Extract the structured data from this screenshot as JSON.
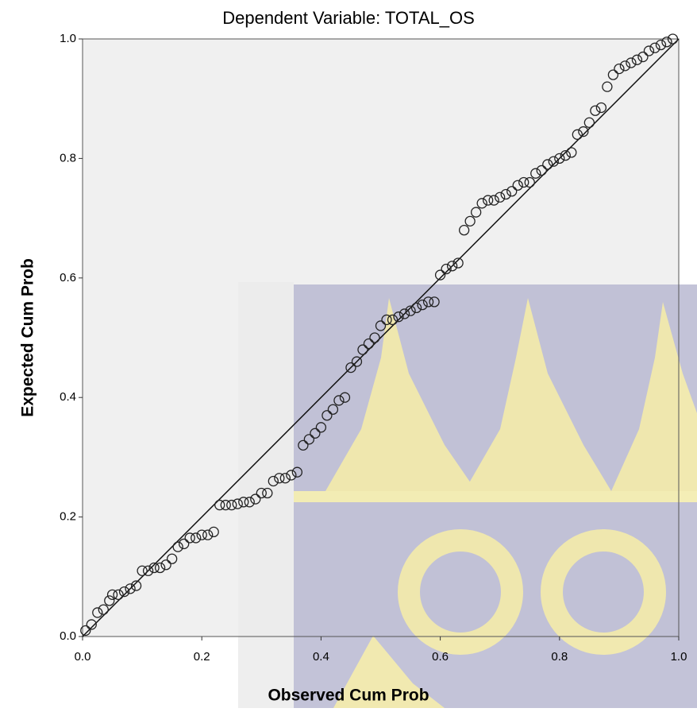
{
  "chart_data": {
    "type": "scatter",
    "title": "Dependent Variable: TOTAL_OS",
    "x_label": "Observed Cum Prob",
    "y_label": "Expected Cum Prob",
    "xlim": [
      0,
      1
    ],
    "ylim": [
      0,
      1
    ],
    "xticks": [
      {
        "value": 0,
        "label": "0.0"
      },
      0.2,
      0.4,
      0.6,
      0.8,
      {
        "value": 1,
        "label": "1.0"
      }
    ],
    "yticks": [
      {
        "value": 0,
        "label": "0.0"
      },
      0.2,
      0.4,
      0.6,
      0.8,
      {
        "value": 1,
        "label": "1.0"
      }
    ],
    "color": "#222222",
    "x": [
      0.005,
      0.015,
      0.025,
      0.035,
      0.045,
      0.05,
      0.06,
      0.07,
      0.08,
      0.09,
      0.1,
      0.11,
      0.12,
      0.13,
      0.14,
      0.15,
      0.16,
      0.17,
      0.18,
      0.19,
      0.2,
      0.21,
      0.22,
      0.23,
      0.24,
      0.25,
      0.26,
      0.27,
      0.28,
      0.29,
      0.3,
      0.31,
      0.32,
      0.33,
      0.34,
      0.35,
      0.36,
      0.37,
      0.38,
      0.39,
      0.4,
      0.41,
      0.42,
      0.43,
      0.44,
      0.45,
      0.46,
      0.47,
      0.48,
      0.49,
      0.5,
      0.51,
      0.52,
      0.53,
      0.54,
      0.55,
      0.56,
      0.57,
      0.58,
      0.59,
      0.6,
      0.61,
      0.62,
      0.63,
      0.64,
      0.65,
      0.66,
      0.67,
      0.68,
      0.69,
      0.7,
      0.71,
      0.72,
      0.73,
      0.74,
      0.75,
      0.76,
      0.77,
      0.78,
      0.79,
      0.8,
      0.81,
      0.82,
      0.83,
      0.84,
      0.85,
      0.86,
      0.87,
      0.88,
      0.89,
      0.9,
      0.91,
      0.92,
      0.93,
      0.94,
      0.95,
      0.96,
      0.97,
      0.98,
      0.99
    ],
    "values": [
      0.01,
      0.02,
      0.04,
      0.045,
      0.06,
      0.07,
      0.07,
      0.075,
      0.08,
      0.085,
      0.11,
      0.11,
      0.115,
      0.115,
      0.12,
      0.13,
      0.15,
      0.155,
      0.165,
      0.165,
      0.17,
      0.17,
      0.175,
      0.22,
      0.22,
      0.22,
      0.222,
      0.225,
      0.225,
      0.23,
      0.24,
      0.24,
      0.26,
      0.265,
      0.265,
      0.27,
      0.275,
      0.32,
      0.33,
      0.34,
      0.35,
      0.37,
      0.38,
      0.395,
      0.4,
      0.45,
      0.46,
      0.48,
      0.49,
      0.5,
      0.52,
      0.53,
      0.53,
      0.535,
      0.54,
      0.545,
      0.55,
      0.555,
      0.56,
      0.56,
      0.605,
      0.615,
      0.62,
      0.625,
      0.68,
      0.695,
      0.71,
      0.725,
      0.73,
      0.73,
      0.735,
      0.74,
      0.745,
      0.755,
      0.76,
      0.76,
      0.775,
      0.78,
      0.79,
      0.795,
      0.8,
      0.805,
      0.81,
      0.84,
      0.845,
      0.86,
      0.88,
      0.885,
      0.92,
      0.94,
      0.95,
      0.955,
      0.96,
      0.965,
      0.97,
      0.98,
      0.985,
      0.99,
      0.995,
      1.0
    ]
  }
}
